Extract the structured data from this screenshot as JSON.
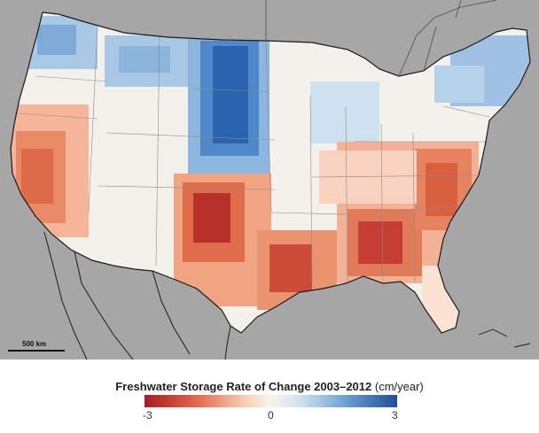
{
  "map": {
    "scale_bar_label": "500 km",
    "background_color": "#a6a6a6",
    "border_color": "#1a1a1a"
  },
  "legend": {
    "title": "Freshwater Storage Rate of Change 2003–2012",
    "units": "(cm/year)",
    "tick_min": "-3",
    "tick_mid": "0",
    "tick_max": "3",
    "colors": [
      "#b2182b",
      "#ef8a62",
      "#fddbc7",
      "#f7f7f7",
      "#d1e5f0",
      "#67a9cf",
      "#2166ac"
    ]
  }
}
